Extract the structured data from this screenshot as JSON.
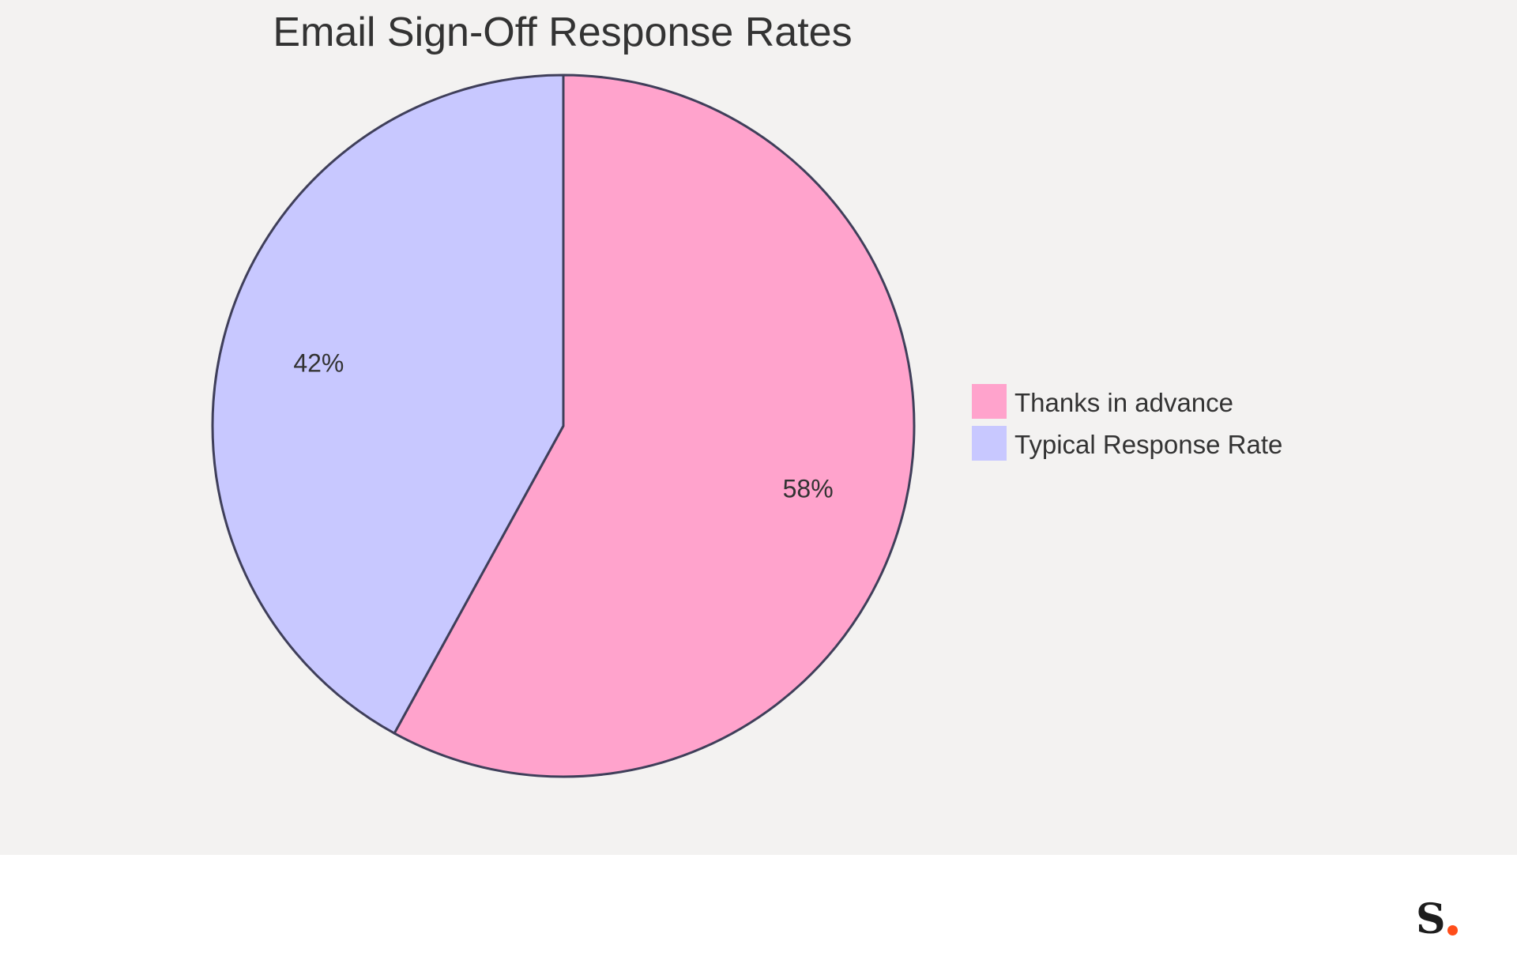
{
  "chart_data": {
    "type": "pie",
    "title": "Email Sign-Off Response Rates",
    "slices": [
      {
        "name": "Thanks in advance",
        "value": 58,
        "label": "58%",
        "color": "#ffa3cc"
      },
      {
        "name": "Typical Response Rate",
        "value": 42,
        "label": "42%",
        "color": "#c8c8ff"
      }
    ],
    "start_angle_deg": 0,
    "direction": "clockwise",
    "stroke_color": "#3f3f5a",
    "legend": {
      "position": "right",
      "items": [
        "Thanks in advance",
        "Typical Response Rate"
      ]
    }
  },
  "colors": {
    "chart_background": "#f3f2f1",
    "footer_background": "#ffffff",
    "text": "#333333",
    "brand_dot": "#ff4d1a"
  },
  "brand": {
    "logo_letter": "S",
    "logo_icon": "brand-logo-icon"
  }
}
